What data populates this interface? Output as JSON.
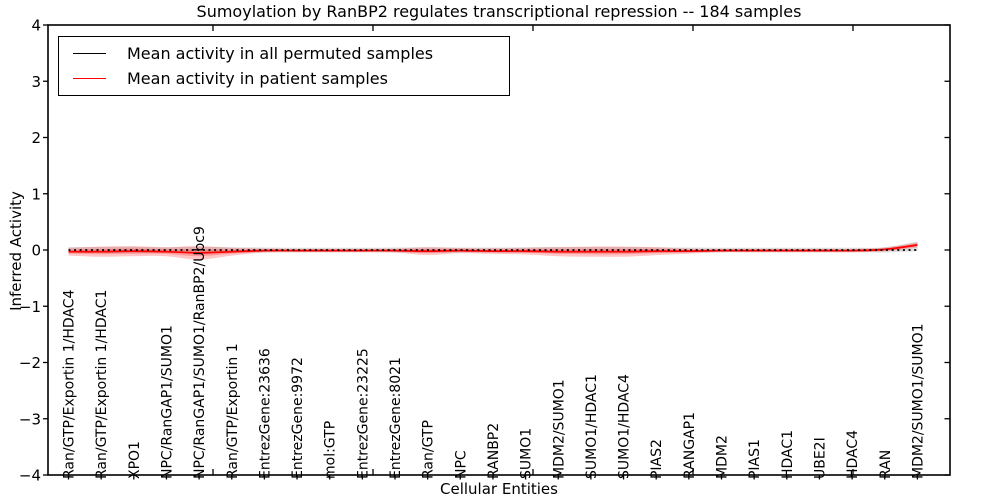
{
  "figure": {
    "background": "#ffffff"
  },
  "chart_data": {
    "type": "line",
    "title": "Sumoylation by RanBP2 regulates transcriptional repression -- 184 samples",
    "xlabel": "Cellular Entities",
    "ylabel": "Inferred Activity",
    "ylim": [
      -4,
      4
    ],
    "yticks": [
      4,
      3,
      2,
      1,
      0,
      -1,
      -2,
      -3,
      -4
    ],
    "grid": false,
    "legend_position": "upper left",
    "categories": [
      "Ran/GTP/Exportin 1/HDAC4",
      "Ran/GTP/Exportin 1/HDAC1",
      "XPO1",
      "NPC/RanGAP1/SUMO1",
      "NPC/RanGAP1/SUMO1/RanBP2/Ubc9",
      "Ran/GTP/Exportin 1",
      "EntrezGene:23636",
      "EntrezGene:9972",
      "mol:GTP",
      "EntrezGene:23225",
      "EntrezGene:8021",
      "Ran/GTP",
      "NPC",
      "RANBP2",
      "SUMO1",
      "MDM2/SUMO1",
      "SUMO1/HDAC1",
      "SUMO1/HDAC4",
      "PIAS2",
      "RANGAP1",
      "MDM2",
      "PIAS1",
      "HDAC1",
      "UBE2I",
      "HDAC4",
      "RAN",
      "MDM2/SUMO1/SUMO1"
    ],
    "series": [
      {
        "name": "Mean activity in all permuted samples",
        "color": "#000000",
        "line_style": "dotted",
        "values": [
          0,
          0,
          0,
          0,
          0,
          0,
          0,
          0,
          0,
          0,
          0,
          0,
          0,
          0,
          0,
          0,
          0,
          0,
          0,
          0,
          0,
          0,
          0,
          0,
          0,
          0,
          0
        ],
        "band": {
          "color": "#000000",
          "opacity": 0.13,
          "upper": [
            0.05,
            0.055,
            0.055,
            0.05,
            0.06,
            0.05,
            0.045,
            0.04,
            0.04,
            0.04,
            0.045,
            0.05,
            0.045,
            0.045,
            0.05,
            0.055,
            0.055,
            0.055,
            0.05,
            0.045,
            0.04,
            0.04,
            0.04,
            0.04,
            0.04,
            0.05,
            0.15
          ],
          "lower": [
            -0.05,
            -0.055,
            -0.055,
            -0.05,
            -0.06,
            -0.05,
            -0.045,
            -0.04,
            -0.04,
            -0.04,
            -0.045,
            -0.05,
            -0.045,
            -0.045,
            -0.05,
            -0.055,
            -0.055,
            -0.055,
            -0.05,
            -0.045,
            -0.04,
            -0.04,
            -0.04,
            -0.04,
            -0.04,
            -0.045,
            -0.02
          ]
        }
      },
      {
        "name": "Mean activity in patient samples",
        "color": "#ff0000",
        "line_style": "solid",
        "values": [
          -0.03,
          -0.03,
          -0.02,
          -0.03,
          -0.05,
          -0.03,
          -0.01,
          -0.01,
          -0.01,
          -0.01,
          -0.01,
          -0.02,
          -0.01,
          -0.02,
          -0.02,
          -0.03,
          -0.03,
          -0.03,
          -0.02,
          -0.02,
          -0.01,
          -0.01,
          -0.01,
          -0.01,
          -0.01,
          0.01,
          0.09
        ],
        "band": {
          "color": "#ff0000",
          "opacity": 0.22,
          "half_widths": [
            0.07,
            0.09,
            0.09,
            0.08,
            0.12,
            0.07,
            0.035,
            0.03,
            0.03,
            0.03,
            0.035,
            0.07,
            0.045,
            0.05,
            0.06,
            0.08,
            0.09,
            0.09,
            0.07,
            0.045,
            0.03,
            0.03,
            0.03,
            0.03,
            0.03,
            0.035,
            0.045
          ]
        }
      }
    ]
  }
}
